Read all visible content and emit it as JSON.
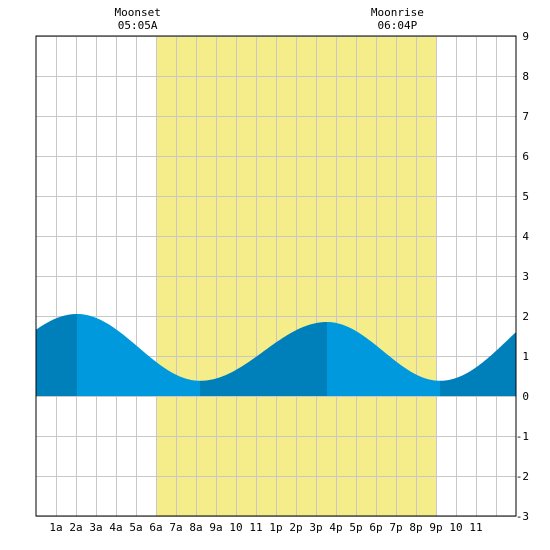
{
  "chart_data": {
    "type": "area",
    "title": "",
    "xlabel": "",
    "ylabel": "",
    "xlim": [
      0,
      24
    ],
    "ylim": [
      -3,
      9
    ],
    "x_ticks": [
      {
        "x": 1,
        "label": "1a"
      },
      {
        "x": 2,
        "label": "2a"
      },
      {
        "x": 3,
        "label": "3a"
      },
      {
        "x": 4,
        "label": "4a"
      },
      {
        "x": 5,
        "label": "5a"
      },
      {
        "x": 6,
        "label": "6a"
      },
      {
        "x": 7,
        "label": "7a"
      },
      {
        "x": 8,
        "label": "8a"
      },
      {
        "x": 9,
        "label": "9a"
      },
      {
        "x": 10,
        "label": "10"
      },
      {
        "x": 11,
        "label": "11"
      },
      {
        "x": 12,
        "label": "1p"
      },
      {
        "x": 13,
        "label": "2p"
      },
      {
        "x": 14,
        "label": "3p"
      },
      {
        "x": 15,
        "label": "4p"
      },
      {
        "x": 16,
        "label": "5p"
      },
      {
        "x": 17,
        "label": "6p"
      },
      {
        "x": 18,
        "label": "7p"
      },
      {
        "x": 19,
        "label": "8p"
      },
      {
        "x": 20,
        "label": "9p"
      },
      {
        "x": 21,
        "label": "10"
      },
      {
        "x": 22,
        "label": "11"
      }
    ],
    "y_ticks": [
      -3,
      -2,
      -1,
      0,
      1,
      2,
      3,
      4,
      5,
      6,
      7,
      8,
      9
    ],
    "y_tick_side": "right",
    "grid": true,
    "daylight": {
      "start": 6.0,
      "end": 20.0,
      "color": "#f5ec8a"
    },
    "extremes": [
      {
        "type": "high",
        "time": 2.05,
        "value": 2.05
      },
      {
        "type": "low",
        "time": 8.2,
        "value": 0.38
      },
      {
        "type": "high",
        "time": 14.55,
        "value": 1.85
      },
      {
        "type": "low",
        "time": 20.2,
        "value": 0.38
      }
    ],
    "end_value": 1.6,
    "series": [
      {
        "values": [
          [
            0,
            1.78
          ],
          [
            2.05,
            2.05
          ],
          [
            8.2,
            0.38
          ],
          [
            14.55,
            1.85
          ],
          [
            20.2,
            0.38
          ],
          [
            24,
            1.6
          ]
        ]
      }
    ],
    "fill_colors": {
      "light": "#0099dd",
      "dark": "#0080bb"
    },
    "annotations": [
      {
        "label": "Moonset",
        "time_text": "05:05A",
        "x": 5.083
      },
      {
        "label": "Moonrise",
        "time_text": "06:04P",
        "x": 18.067
      }
    ],
    "colors": {
      "grid": "#c8c8c8",
      "axis": "#000000",
      "background": "#ffffff"
    }
  }
}
